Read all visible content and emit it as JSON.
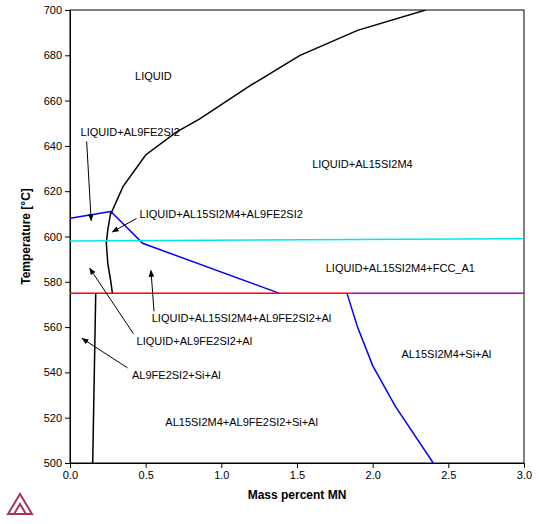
{
  "chart_data": {
    "type": "line",
    "x_label": "Mass percent MN",
    "y_label": "Temperature [°C]",
    "xlim": [
      0,
      3.0
    ],
    "ylim": [
      500,
      700
    ],
    "xticks": [
      {
        "value": 0,
        "label": "0.0"
      },
      0.5,
      {
        "value": 1.0,
        "label": "1.0"
      },
      1.5,
      {
        "value": 2.0,
        "label": "2.0"
      },
      2.5,
      {
        "value": 3.0,
        "label": "3.0"
      }
    ],
    "yticks": [
      500,
      520,
      540,
      560,
      580,
      600,
      620,
      640,
      660,
      680,
      700
    ],
    "grid": false,
    "series": [
      {
        "color": "#000000",
        "x": [
          0.27,
          0.35,
          0.5,
          0.7,
          0.86,
          1.2,
          1.52,
          1.9,
          2.35
        ],
        "values": [
          610,
          622,
          636,
          646,
          652,
          667,
          680,
          691,
          700
        ]
      },
      {
        "color": "#000000",
        "x": [
          0.27,
          0.25,
          0.24,
          0.25,
          0.27,
          0.28
        ],
        "values": [
          611,
          603,
          597,
          588,
          580,
          575
        ]
      },
      {
        "color": "#000000",
        "x": [
          0.17,
          0.15
        ],
        "values": [
          575,
          500
        ]
      },
      {
        "color": "#0000ff",
        "x": [
          0,
          0.27
        ],
        "values": [
          608,
          611
        ]
      },
      {
        "color": "#0000ff",
        "x": [
          0.27,
          0.48,
          1.38
        ],
        "values": [
          611,
          597,
          575
        ]
      },
      {
        "color": "#0000ff",
        "x": [
          1.83,
          1.9,
          2.0,
          2.15,
          2.4
        ],
        "values": [
          575,
          560,
          543,
          525,
          500
        ]
      },
      {
        "color": "#00e5ee",
        "x": [
          0,
          3.0
        ],
        "values": [
          598,
          599
        ]
      },
      {
        "color": "#ff0000",
        "x": [
          0,
          1.85
        ],
        "values": [
          575,
          575
        ]
      },
      {
        "color": "#b000c0",
        "x": [
          1.85,
          3.0
        ],
        "values": [
          575,
          575
        ]
      }
    ],
    "annotations": [
      {
        "text": "LIQUID",
        "x": 0.43,
        "y": 671
      },
      {
        "text": "LIQUID+AL9FE2SI2",
        "x": 0.07,
        "y": 646,
        "arrow": {
          "from": [
            0.11,
            642
          ],
          "to": [
            0.14,
            607
          ]
        }
      },
      {
        "text": "LIQUID+AL15SI2M4",
        "x": 1.6,
        "y": 632
      },
      {
        "text": "LIQUID+AL15SI2M4+AL9FE2SI2",
        "x": 0.46,
        "y": 610,
        "arrow": {
          "from": [
            0.44,
            608
          ],
          "to": [
            0.28,
            602
          ]
        }
      },
      {
        "text": "LIQUID+AL15SI2M4+FCC_A1",
        "x": 1.69,
        "y": 586
      },
      {
        "text": "LIQUID+AL15SI2M4+AL9FE2SI2+Al",
        "x": 0.54,
        "y": 564,
        "arrow": {
          "from": [
            0.555,
            567
          ],
          "to": [
            0.535,
            585
          ]
        }
      },
      {
        "text": "LIQUID+AL9FE2SI2+Al",
        "x": 0.44,
        "y": 554,
        "arrow": {
          "from": [
            0.42,
            557
          ],
          "to": [
            0.13,
            586
          ]
        }
      },
      {
        "text": "AL9FE2SI2+Si+Al",
        "x": 0.41,
        "y": 539,
        "arrow": {
          "from": [
            0.38,
            542
          ],
          "to": [
            0.08,
            555
          ]
        }
      },
      {
        "text": "AL15SI2M4+AL9FE2SI2+Si+Al",
        "x": 0.63,
        "y": 518
      },
      {
        "text": "AL15SI2M4+Si+Al",
        "x": 2.19,
        "y": 548
      }
    ]
  }
}
